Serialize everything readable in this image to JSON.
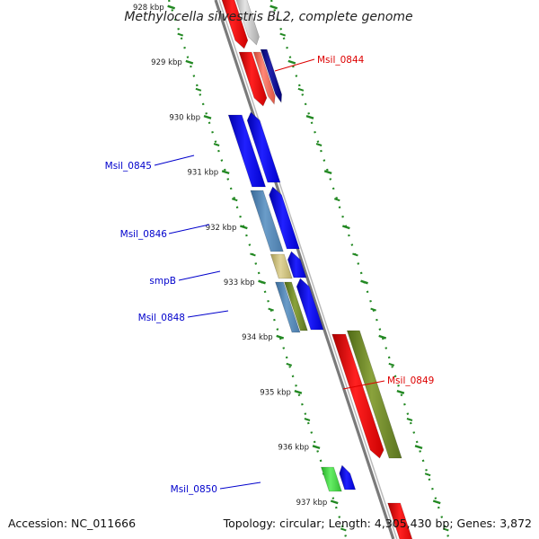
{
  "title": "Methylocella silvestris BL2, complete genome",
  "footer": {
    "accession": "Accession: NC_011666",
    "topology": "Topology: circular; Length: 4,305,430 bp; Genes: 3,872"
  },
  "ticks": [
    {
      "label": "928 kbp",
      "kbp": 928
    },
    {
      "label": "929 kbp",
      "kbp": 929
    },
    {
      "label": "930 kbp",
      "kbp": 930
    },
    {
      "label": "931 kbp",
      "kbp": 931
    },
    {
      "label": "932 kbp",
      "kbp": 932
    },
    {
      "label": "933 kbp",
      "kbp": 933
    },
    {
      "label": "934 kbp",
      "kbp": 934
    },
    {
      "label": "935 kbp",
      "kbp": 935
    },
    {
      "label": "936 kbp",
      "kbp": 936
    },
    {
      "label": "937 kbp",
      "kbp": 937
    }
  ],
  "gene_labels": [
    {
      "text": "Msil_0844",
      "color": "#dd0000"
    },
    {
      "text": "Msil_0845",
      "color": "#0000cc"
    },
    {
      "text": "Msil_0846",
      "color": "#0000cc"
    },
    {
      "text": "smpB",
      "color": "#0000cc"
    },
    {
      "text": "Msil_0848",
      "color": "#0000cc"
    },
    {
      "text": "Msil_0849",
      "color": "#dd0000"
    },
    {
      "text": "Msil_0850",
      "color": "#0000cc"
    }
  ],
  "colors": {
    "forward_cds": "#ff0000",
    "reverse_cds": "#0000ff",
    "backbone": "#888888",
    "ticks": "#228822"
  }
}
